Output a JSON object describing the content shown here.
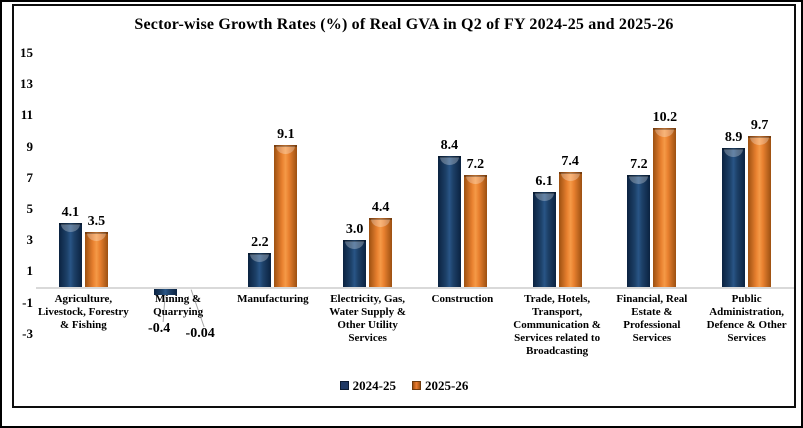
{
  "chart_data": {
    "type": "bar",
    "title": "Sector-wise Growth Rates (%) of Real GVA in Q2 of FY 2024-25 and 2025-26",
    "categories": [
      "Agriculture,\nLivestock, Forestry\n& Fishing",
      "Mining &\nQuarrying",
      "Manufacturing",
      "Electricity, Gas,\nWater Supply &\nOther Utility\nServices",
      "Construction",
      "Trade, Hotels,\nTransport,\nCommunication &\nServices related to\nBroadcasting",
      "Financial, Real\nEstate &\nProfessional\nServices",
      "Public\nAdministration,\nDefence & Other\nServices"
    ],
    "series": [
      {
        "name": "2024-25",
        "color": "#1F3864",
        "values": [
          4.1,
          -0.4,
          2.2,
          3.0,
          8.4,
          6.1,
          7.2,
          8.9
        ],
        "labels": [
          "4.1",
          "-0.4",
          "2.2",
          "3.0",
          "8.4",
          "6.1",
          "7.2",
          "8.9"
        ]
      },
      {
        "name": "2025-26",
        "color": "#ED7D31",
        "values": [
          3.5,
          -0.04,
          9.1,
          4.4,
          7.2,
          7.4,
          10.2,
          9.7
        ],
        "labels": [
          "3.5",
          "-0.04",
          "9.1",
          "4.4",
          "7.2",
          "7.4",
          "10.2",
          "9.7"
        ]
      }
    ],
    "y_axis": {
      "min": -3,
      "max": 15,
      "step": 2,
      "ticks": [
        "15",
        "13",
        "11",
        "9",
        "7",
        "5",
        "3",
        "1",
        "-1",
        "-3"
      ]
    },
    "grid": "none",
    "legend_position": "bottom",
    "baseline_color": "#D9D9D9",
    "text_color": "#000000"
  }
}
